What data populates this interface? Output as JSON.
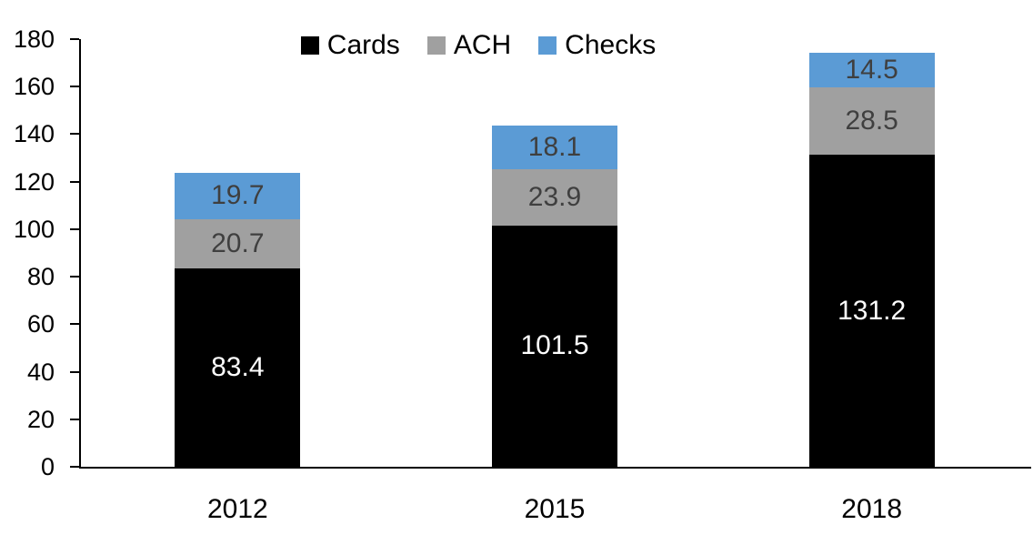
{
  "chart_data": {
    "type": "bar",
    "stacked": true,
    "title": "",
    "xlabel": "",
    "ylabel": "",
    "categories": [
      "2012",
      "2015",
      "2018"
    ],
    "series": [
      {
        "name": "Cards",
        "color": "#000000",
        "label_color": "#ffffff",
        "values": [
          83.4,
          101.5,
          131.2
        ]
      },
      {
        "name": "ACH",
        "color": "#a0a0a0",
        "label_color": "#3f3f3f",
        "values": [
          20.7,
          23.9,
          28.5
        ]
      },
      {
        "name": "Checks",
        "color": "#5b9bd5",
        "label_color": "#3f3f3f",
        "values": [
          19.7,
          18.1,
          14.5
        ]
      }
    ],
    "ylim": [
      0,
      180
    ],
    "ytick_step": 20,
    "ytick_labels": [
      "0",
      "20",
      "40",
      "60",
      "80",
      "100",
      "120",
      "140",
      "160",
      "180"
    ],
    "grid": false,
    "legend_position": "top",
    "legend_labels": [
      "Cards",
      "ACH",
      "Checks"
    ]
  }
}
